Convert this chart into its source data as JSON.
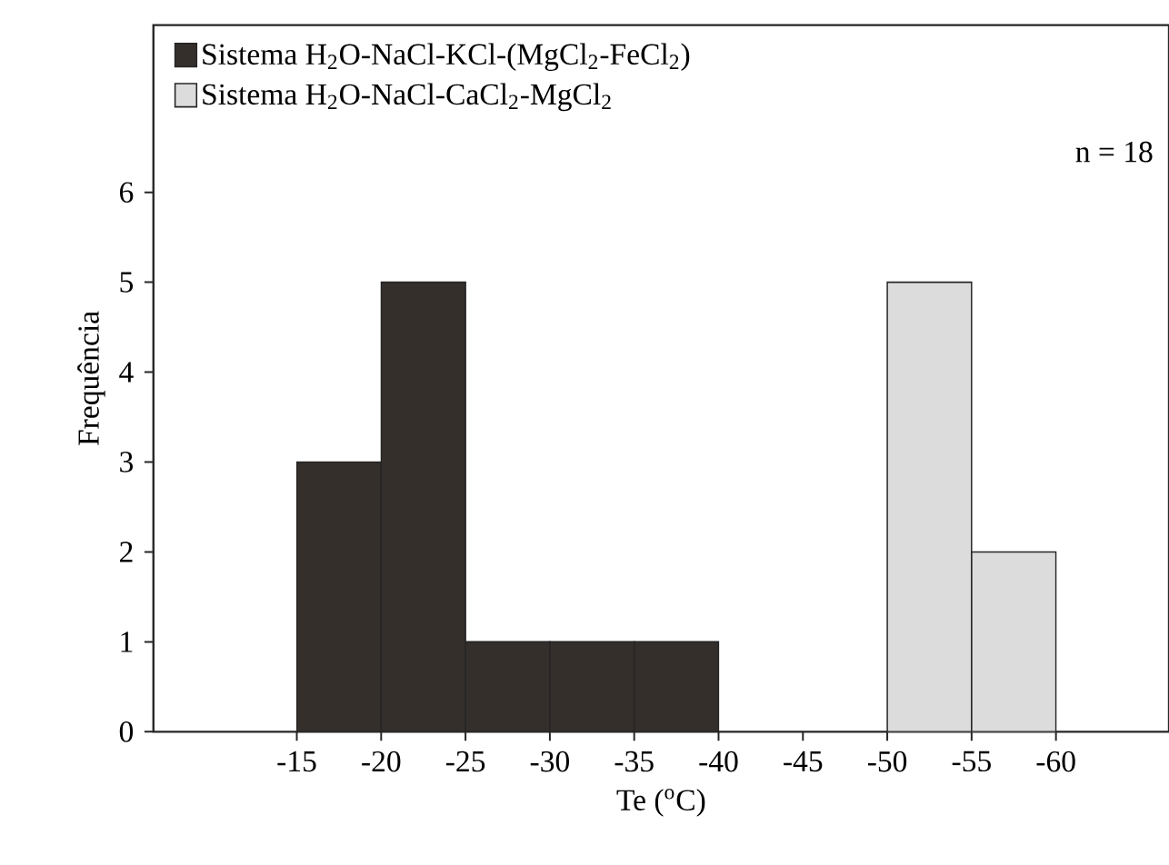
{
  "chart_data": {
    "type": "histogram",
    "xlabel": "Te ($^{o}$C)",
    "ylabel": "Frequência",
    "bins": [
      -15,
      -20,
      -25,
      -30,
      -35,
      -40,
      -45,
      -50,
      -55,
      -60
    ],
    "series": [
      {
        "name": "Sistema H$_{2}$O-NaCl-KCl-(MgCl$_{2}$-FeCl$_{2}$)",
        "color": "#352f2c",
        "values": [
          3,
          5,
          1,
          1,
          1,
          null,
          null,
          null,
          null
        ]
      },
      {
        "name": "Sistema H$_{2}$O-NaCl-CaCl$_{2}$-MgCl$_{2}$",
        "color": "#dcdcdc",
        "values": [
          null,
          null,
          null,
          null,
          null,
          null,
          null,
          5,
          2
        ]
      }
    ],
    "xlim": [
      -6.5,
      -66.7
    ],
    "ylim": [
      0,
      7.86
    ],
    "xticks": [
      -15,
      -20,
      -25,
      -30,
      -35,
      -40,
      -45,
      -50,
      -55,
      -60
    ],
    "yticks": [
      0,
      1,
      2,
      3,
      4,
      5,
      6
    ],
    "grid": false,
    "legend": "top left",
    "annotations": [
      "n = 18"
    ]
  }
}
